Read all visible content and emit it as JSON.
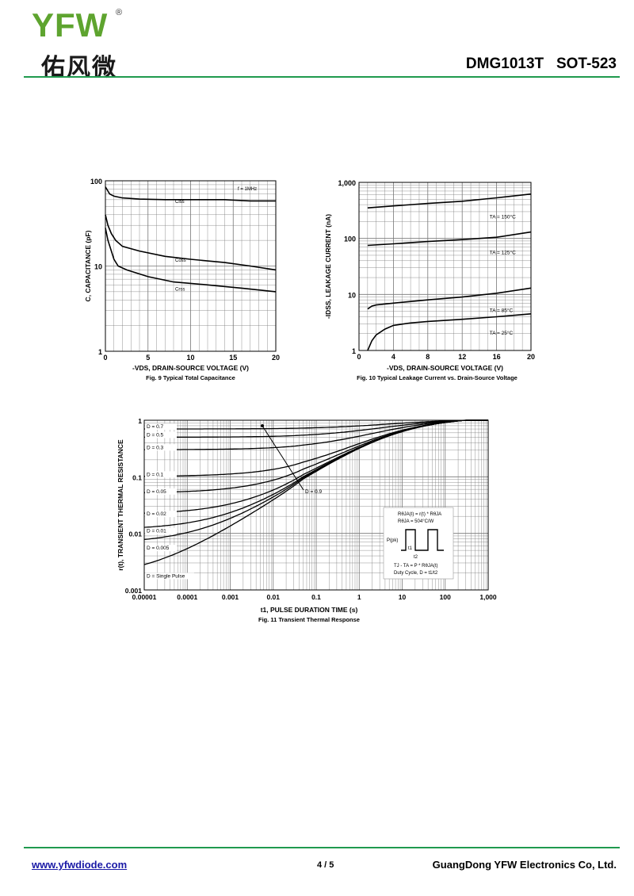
{
  "header": {
    "logo_latin": "YFW",
    "logo_registered": "®",
    "logo_chinese": "佑风微",
    "part_number": "DMG1013T   SOT-523"
  },
  "footer": {
    "website": "www.yfwdiode.com",
    "page": "4 / 5",
    "company": "GuangDong YFW Electronics Co, Ltd."
  },
  "colors": {
    "rule": "#1f9a4e",
    "logo": "#5ea42f",
    "link": "#1a1aa6"
  },
  "chart_data": [
    {
      "type": "line",
      "title": "Fig. 9 Typical Total Capacitance",
      "xlabel": "-VDS, DRAIN-SOURCE VOLTAGE (V)",
      "ylabel": "C, CAPACITANCE (pF)",
      "xlim": [
        0,
        20
      ],
      "ylim": [
        1,
        100
      ],
      "yscale": "log",
      "xticks": [
        "0",
        "5",
        "10",
        "15",
        "20"
      ],
      "yticks": [
        "1",
        "10",
        "100"
      ],
      "annotations": [
        "f = 1MHz"
      ],
      "grid": true,
      "series": [
        {
          "name": "Ciss",
          "x": [
            0,
            0.5,
            1,
            2,
            4,
            7,
            10,
            14,
            17,
            20
          ],
          "y": [
            85,
            70,
            66,
            63,
            61,
            60,
            60,
            60,
            58,
            58
          ]
        },
        {
          "name": "Coss",
          "x": [
            0,
            0.3,
            0.7,
            1.2,
            2,
            4,
            7,
            10,
            14,
            17,
            20
          ],
          "y": [
            40,
            30,
            24,
            20,
            17,
            15,
            13,
            12,
            11,
            10,
            9
          ]
        },
        {
          "name": "Crss",
          "x": [
            0,
            0.3,
            0.7,
            1,
            1.5,
            2.5,
            5,
            8,
            12,
            16,
            20
          ],
          "y": [
            28,
            20,
            15,
            12,
            10,
            9,
            7.5,
            6.5,
            6,
            5.5,
            5
          ]
        }
      ]
    },
    {
      "type": "line",
      "title": "Fig. 10 Typical Leakage Current vs. Drain-Source Voltage",
      "xlabel": "-VDS, DRAIN-SOURCE VOLTAGE (V)",
      "ylabel": "-IDSS, LEAKAGE CURRENT (nA)",
      "xlim": [
        0,
        20
      ],
      "ylim": [
        1,
        1000
      ],
      "yscale": "log",
      "xticks": [
        "0",
        "4",
        "8",
        "12",
        "16",
        "20"
      ],
      "yticks": [
        "1",
        "10",
        "100",
        "1,000"
      ],
      "grid": true,
      "series": [
        {
          "name": "TA = 150°C",
          "x": [
            1,
            4,
            8,
            12,
            16,
            20
          ],
          "y": [
            350,
            380,
            420,
            460,
            530,
            620
          ]
        },
        {
          "name": "TA = 125°C",
          "x": [
            1,
            4,
            8,
            12,
            16,
            20
          ],
          "y": [
            75,
            80,
            88,
            95,
            105,
            130
          ]
        },
        {
          "name": "TA = 85°C",
          "x": [
            1,
            1.5,
            2,
            4,
            8,
            12,
            16,
            20
          ],
          "y": [
            5.5,
            6.2,
            6.5,
            7,
            8,
            9,
            10.5,
            13
          ]
        },
        {
          "name": "TA = 25°C",
          "x": [
            1,
            1.5,
            2,
            3,
            4,
            6,
            8,
            12,
            16,
            20
          ],
          "y": [
            1,
            1.5,
            1.9,
            2.4,
            2.8,
            3.1,
            3.3,
            3.6,
            4,
            4.5
          ]
        }
      ]
    },
    {
      "type": "line",
      "title": "Fig. 11 Transient Thermal Response",
      "xlabel": "t1, PULSE DURATION TIME (s)",
      "ylabel": "r(t), TRANSIENT THERMAL RESISTANCE",
      "xlim": [
        1e-05,
        1000
      ],
      "ylim": [
        0.001,
        1
      ],
      "xscale": "log",
      "yscale": "log",
      "xticks": [
        "0.00001",
        "0.0001",
        "0.001",
        "0.01",
        "0.1",
        "1",
        "10",
        "100",
        "1,000"
      ],
      "yticks": [
        "0.001",
        "0.01",
        "0.1",
        "1"
      ],
      "grid": true,
      "annotations": [
        "D = 0.9"
      ],
      "inset": {
        "line1": "RθJA(t) = r(t) * RθJA",
        "line2": "RθJA = 504°C/W",
        "pulse_label": "P(pk)",
        "t1": "t1",
        "t2": "t2",
        "line3": "TJ - TA = P * RθJA(t)",
        "line4": "Duty Cycle, D = t1/t2"
      },
      "series": [
        {
          "name": "D = 0.7",
          "D": 0.7,
          "end": 1
        },
        {
          "name": "D = 0.5",
          "D": 0.5,
          "end": 1
        },
        {
          "name": "D = 0.3",
          "D": 0.3,
          "end": 1
        },
        {
          "name": "D = 0.1",
          "D": 0.1,
          "end": 1
        },
        {
          "name": "D = 0.05",
          "D": 0.05,
          "end": 1
        },
        {
          "name": "D = 0.02",
          "D": 0.02,
          "end": 1
        },
        {
          "name": "D = 0.01",
          "D": 0.01,
          "end": 1
        },
        {
          "name": "D = 0.005",
          "D": 0.005,
          "end": 1
        },
        {
          "name": "D = Single Pulse",
          "D": 0,
          "end": 1
        }
      ]
    }
  ]
}
